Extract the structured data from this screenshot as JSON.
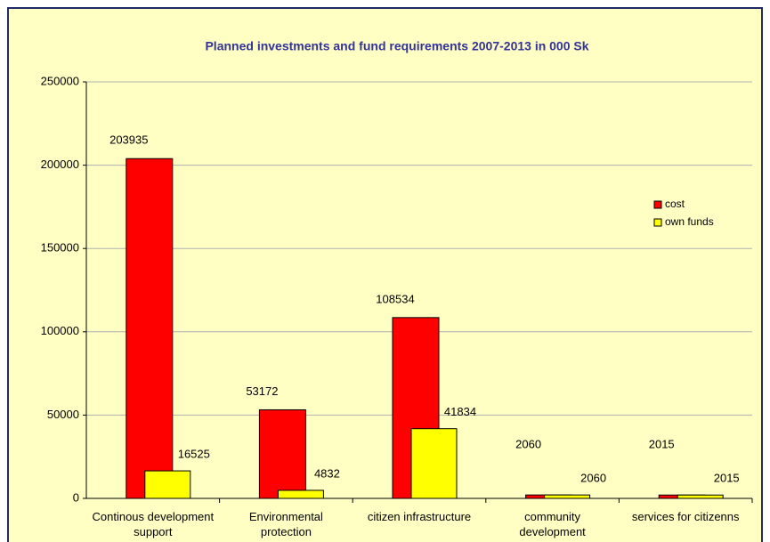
{
  "chart_data": {
    "type": "bar",
    "title": "Planned investments and fund requirements 2007-2013 in 000 Sk",
    "categories": [
      "Continous development support",
      "Environmental protection",
      "citizen infrastructure",
      "community development",
      "services for citizenns"
    ],
    "series": [
      {
        "name": "cost",
        "color": "#ff0000",
        "values": [
          203935,
          53172,
          108534,
          2060,
          2015
        ]
      },
      {
        "name": "own funds",
        "color": "#ffff00",
        "values": [
          16525,
          4832,
          41834,
          2060,
          2015
        ]
      }
    ],
    "ylim": [
      0,
      250000
    ],
    "yticks": [
      0,
      50000,
      100000,
      150000,
      200000,
      250000
    ],
    "grid": true,
    "legend": "right"
  }
}
